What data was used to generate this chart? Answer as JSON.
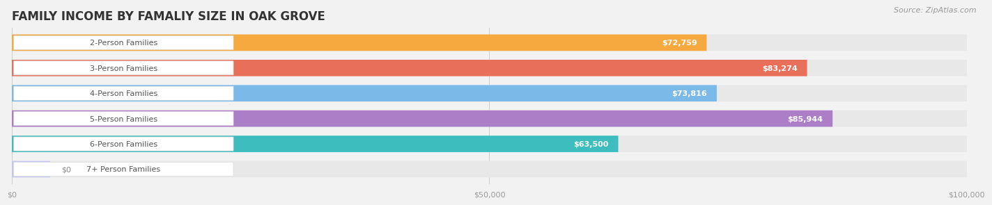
{
  "title": "FAMILY INCOME BY FAMALIY SIZE IN OAK GROVE",
  "source": "Source: ZipAtlas.com",
  "categories": [
    "2-Person Families",
    "3-Person Families",
    "4-Person Families",
    "5-Person Families",
    "6-Person Families",
    "7+ Person Families"
  ],
  "values": [
    72759,
    83274,
    73816,
    85944,
    63500,
    0
  ],
  "bar_colors": [
    "#F5A93E",
    "#E8705A",
    "#7BBAE8",
    "#AC7EC8",
    "#3DBDBE",
    "#C5C8EE"
  ],
  "background_color": "#F2F2F2",
  "bar_bg_color": "#E8E8E8",
  "label_box_color": "#FFFFFF",
  "xmin": 0,
  "xmax": 100000,
  "xticks": [
    0,
    50000,
    100000
  ],
  "xtick_labels": [
    "$0",
    "$50,000",
    "$100,000"
  ],
  "title_fontsize": 12,
  "label_fontsize": 8,
  "value_fontsize": 8,
  "source_fontsize": 8,
  "bar_height": 0.65,
  "title_color": "#333333",
  "tick_color": "#999999",
  "source_color": "#999999",
  "value_color": "#FFFFFF",
  "label_text_color": "#555555"
}
